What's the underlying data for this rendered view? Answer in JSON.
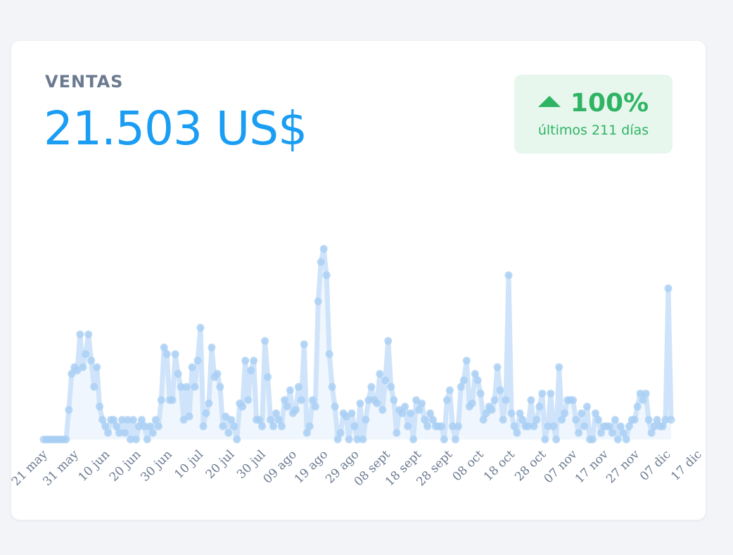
{
  "card": {
    "label": "VENTAS",
    "value": "21.503 US$",
    "change": "100%",
    "change_caption": "últimos 211 días",
    "change_icon": "triangle-up-icon"
  },
  "colors": {
    "accent": "#1a9df2",
    "positive": "#2fb463",
    "series": "#a7cdf3"
  },
  "chart_data": {
    "type": "area",
    "title": "",
    "xlabel": "",
    "ylabel": "",
    "x_ticks": [
      "21 may",
      "31 may",
      "10 jun",
      "20 jun",
      "30 jun",
      "10 jul",
      "20 jul",
      "30 jul",
      "09 ago",
      "19 ago",
      "29 ago",
      "08 sept",
      "18 sept",
      "28 sept",
      "08 oct",
      "18 oct",
      "28 oct",
      "07 nov",
      "17 nov",
      "27 nov",
      "07 dic",
      "17 dic"
    ],
    "x_range": [
      "21 may",
      "17 dic"
    ],
    "ylim": [
      0,
      300
    ],
    "grid": false,
    "legend": "none",
    "series": [
      {
        "values": [
          0,
          0,
          0,
          0,
          0,
          0,
          0,
          0,
          0,
          45,
          100,
          110,
          105,
          160,
          110,
          130,
          160,
          120,
          80,
          110,
          50,
          30,
          20,
          10,
          30,
          30,
          20,
          10,
          30,
          10,
          30,
          0,
          30,
          0,
          20,
          30,
          20,
          0,
          20,
          10,
          30,
          20,
          60,
          140,
          130,
          60,
          60,
          130,
          100,
          80,
          30,
          80,
          35,
          110,
          80,
          120,
          170,
          20,
          40,
          55,
          140,
          95,
          100,
          80,
          20,
          35,
          10,
          30,
          20,
          0,
          55,
          50,
          120,
          60,
          105,
          120,
          30,
          30,
          20,
          150,
          95,
          30,
          20,
          40,
          30,
          20,
          60,
          50,
          75,
          40,
          45,
          80,
          60,
          145,
          10,
          20,
          60,
          50,
          210,
          270,
          290,
          250,
          130,
          80,
          50,
          0,
          10,
          40,
          35,
          0,
          40,
          20,
          0,
          55,
          0,
          30,
          60,
          80,
          60,
          55,
          100,
          45,
          90,
          150,
          80,
          60,
          10,
          45,
          40,
          50,
          20,
          40,
          0,
          60,
          45,
          55,
          30,
          20,
          40,
          30,
          20,
          20,
          20,
          0,
          60,
          75,
          20,
          0,
          20,
          80,
          90,
          120,
          50,
          55,
          100,
          90,
          70,
          30,
          40,
          50,
          45,
          60,
          110,
          75,
          30,
          60,
          250,
          40,
          20,
          10,
          40,
          30,
          20,
          20,
          60,
          20,
          30,
          50,
          70,
          0,
          20,
          70,
          20,
          0,
          110,
          30,
          40,
          60,
          60,
          60,
          30,
          10,
          40,
          20,
          50,
          0,
          0,
          40,
          30,
          10,
          20,
          20,
          20,
          10,
          30,
          0,
          20,
          10,
          0,
          20,
          30,
          30,
          50,
          70,
          60,
          70,
          30,
          10,
          20,
          30,
          20,
          20,
          30,
          230,
          30
        ]
      }
    ]
  }
}
